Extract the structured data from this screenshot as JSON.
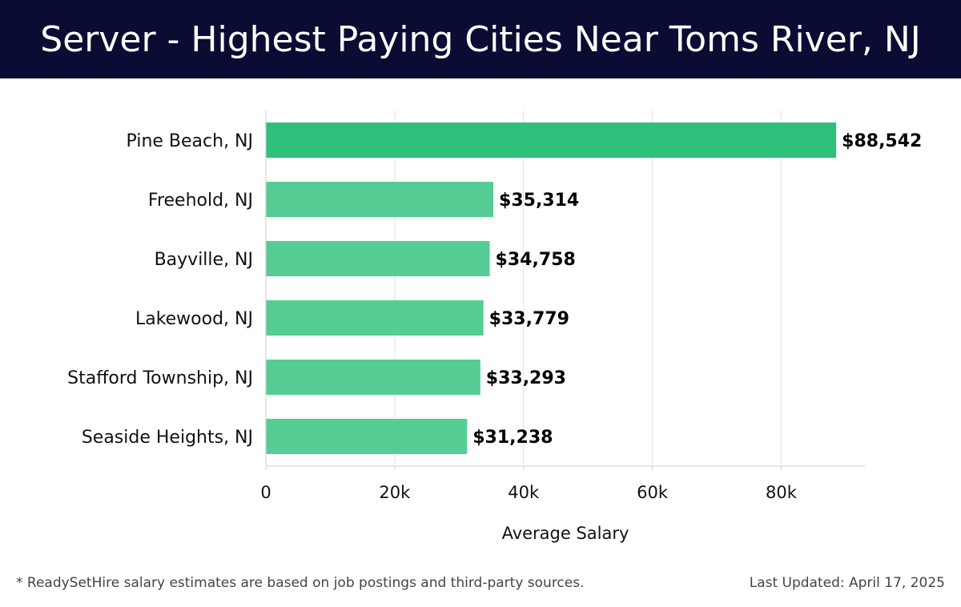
{
  "header": {
    "title": "Server - Highest Paying Cities Near Toms River, NJ"
  },
  "footer": {
    "note": "* ReadySetHire salary estimates are based on job postings and third-party sources.",
    "updated": "Last Updated: April 17, 2025"
  },
  "colors": {
    "banner": "#0b0c33",
    "bar_highlight": "#2ebf7a",
    "bar": "#56cd95",
    "grid": "#e2e2e2"
  },
  "chart_data": {
    "type": "bar",
    "orientation": "horizontal",
    "categories": [
      "Pine Beach, NJ",
      "Freehold, NJ",
      "Bayville, NJ",
      "Lakewood, NJ",
      "Stafford Township, NJ",
      "Seaside Heights, NJ"
    ],
    "values": [
      88542,
      35314,
      34758,
      33779,
      33293,
      31238
    ],
    "value_labels": [
      "$88,542",
      "$35,314",
      "$34,758",
      "$33,779",
      "$33,293",
      "$31,238"
    ],
    "xlabel": "Average Salary",
    "ylabel": "",
    "xlim": [
      0,
      93000
    ],
    "xticks": [
      0,
      20000,
      40000,
      60000,
      80000
    ],
    "xtick_labels": [
      "0",
      "20k",
      "40k",
      "60k",
      "80k"
    ],
    "grid": true,
    "legend": "none"
  }
}
